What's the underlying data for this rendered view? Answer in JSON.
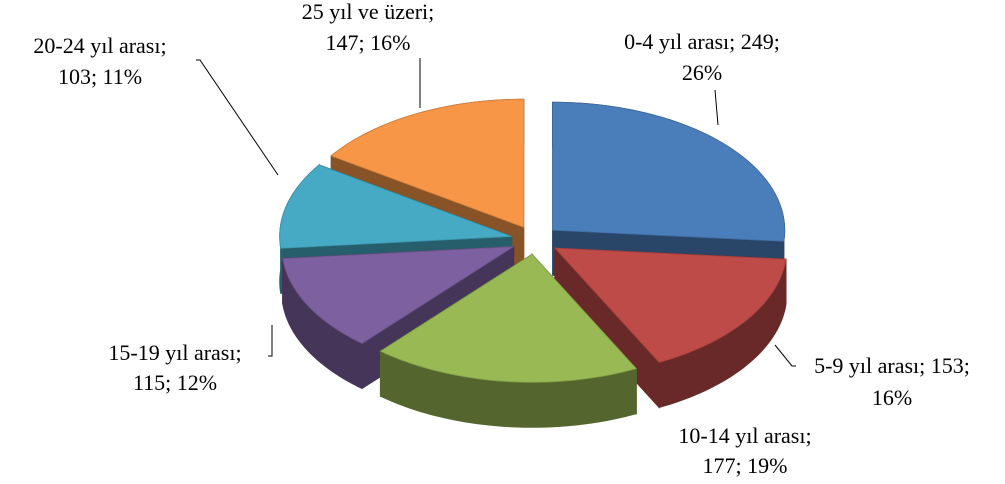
{
  "chart_data": {
    "type": "pie3d",
    "categories": [
      "0-4 yıl arası",
      "5-9 yıl arası",
      "10-14 yıl arası",
      "15-19 yıl arası",
      "20-24 yıl arası",
      "25 yıl ve üzeri"
    ],
    "values": [
      249,
      153,
      177,
      115,
      103,
      147
    ],
    "colors": [
      "#4a7ebb",
      "#be4b48",
      "#98b954",
      "#7d60a0",
      "#46aac5",
      "#f79646"
    ],
    "labels": [
      [
        "0-4 yıl arası; 249;",
        "26%"
      ],
      [
        "5-9 yıl arası; 153;",
        "16%"
      ],
      [
        "10-14 yıl arası;",
        "177; 19%"
      ],
      [
        "15-19 yıl arası;",
        "115; 12%"
      ],
      [
        "20-24 yıl arası;",
        "103; 11%"
      ],
      [
        "25 yıl ve üzeri;",
        "147; 16%"
      ]
    ]
  }
}
